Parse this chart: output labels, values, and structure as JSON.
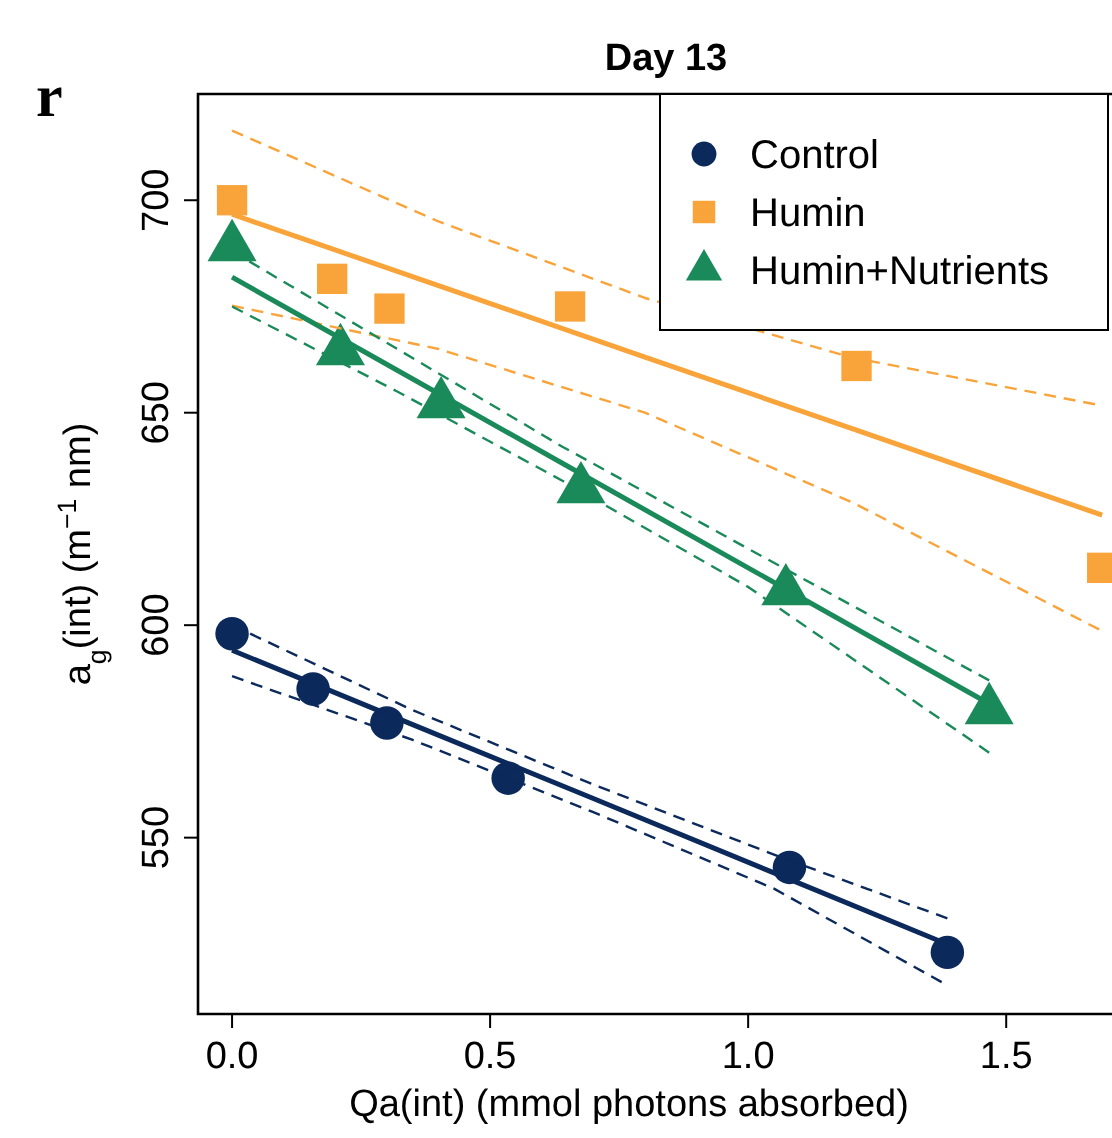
{
  "chart_data": {
    "type": "scatter",
    "title": "Day 13",
    "xlabel": "Qa(int) (mmol photons absorbed)",
    "ylabel": "a$_{g}$(int) (m$^{−1}$ nm)",
    "annotations": [
      "r"
    ],
    "xlim": [
      -0.066,
      1.705
    ],
    "ylim": [
      508.5,
      725
    ],
    "xticks": [
      {
        "value": 0,
        "label": "0.0"
      },
      {
        "value": 0.5,
        "label": "0.5"
      },
      {
        "value": 1,
        "label": "1.0"
      },
      {
        "value": 1.5,
        "label": "1.5"
      }
    ],
    "yticks": [
      550,
      600,
      650,
      700
    ],
    "grid": false,
    "legend": "top right",
    "series": [
      {
        "name": "Control",
        "color": "#0b2a5b",
        "marker": "circle",
        "x": [
          0,
          0.157,
          0.3,
          0.535,
          1.08,
          1.386
        ],
        "values": [
          598,
          585,
          577,
          564,
          543,
          523
        ]
      },
      {
        "name": "Humin",
        "color": "#f9a43a",
        "marker": "square",
        "x": [
          0,
          0.194,
          0.305,
          0.655,
          1.21,
          1.686
        ],
        "values": [
          700,
          681.5,
          674.5,
          675,
          661,
          613.5
        ]
      },
      {
        "name": "Humin+Nutrients",
        "color": "#1a8a5a",
        "marker": "triangle",
        "x": [
          0,
          0.21,
          0.405,
          0.676,
          1.073,
          1.467
        ],
        "values": [
          689,
          664.5,
          652,
          632,
          608,
          580
        ]
      },
      {
        "type": "line",
        "color": "#0b2a5b",
        "line_style": "solid",
        "x": [
          0,
          0.35,
          0.7,
          1.05,
          1.386
        ],
        "values": [
          594.1,
          576.6,
          559.2,
          541.7,
          524.9
        ]
      },
      {
        "type": "line",
        "color": "#0b2a5b",
        "line_style": "dashed",
        "x": [
          0.035,
          0.35,
          0.7,
          1.05,
          1.386
        ],
        "values": [
          598,
          580,
          562.5,
          546,
          531
        ]
      },
      {
        "type": "line",
        "color": "#0b2a5b",
        "line_style": "dashed",
        "x": [
          0,
          0.35,
          0.7,
          1.05,
          1.375
        ],
        "values": [
          588,
          573,
          556,
          538,
          516
        ]
      },
      {
        "type": "line",
        "color": "#f9a43a",
        "line_style": "solid",
        "x": [
          0,
          0.4,
          0.8,
          1.2,
          1.686
        ],
        "values": [
          696.7,
          679.9,
          663.1,
          646.3,
          625.9
        ]
      },
      {
        "type": "line",
        "color": "#f9a43a",
        "line_style": "dashed",
        "x": [
          0,
          0.4,
          0.8,
          1.2,
          1.672
        ],
        "values": [
          716.4,
          695,
          677,
          663,
          652
        ]
      },
      {
        "type": "line",
        "color": "#f9a43a",
        "line_style": "dashed",
        "x": [
          0,
          0.4,
          0.8,
          1.2,
          1.68
        ],
        "values": [
          675.2,
          665,
          650,
          629,
          599
        ]
      },
      {
        "type": "line",
        "color": "#1a8a5a",
        "line_style": "solid",
        "x": [
          0,
          0.32,
          0.64,
          1.0,
          1.467
        ],
        "values": [
          681.9,
          660,
          638.1,
          613.5,
          581.5
        ]
      },
      {
        "type": "line",
        "color": "#1a8a5a",
        "line_style": "dashed",
        "x": [
          0,
          0.32,
          0.64,
          1.0,
          1.467
        ],
        "values": [
          688,
          665,
          642,
          618,
          587
        ]
      },
      {
        "type": "line",
        "color": "#1a8a5a",
        "line_style": "dashed",
        "x": [
          0,
          0.32,
          0.64,
          1.0,
          1.467
        ],
        "values": [
          675,
          655,
          634,
          609,
          570
        ]
      }
    ]
  }
}
